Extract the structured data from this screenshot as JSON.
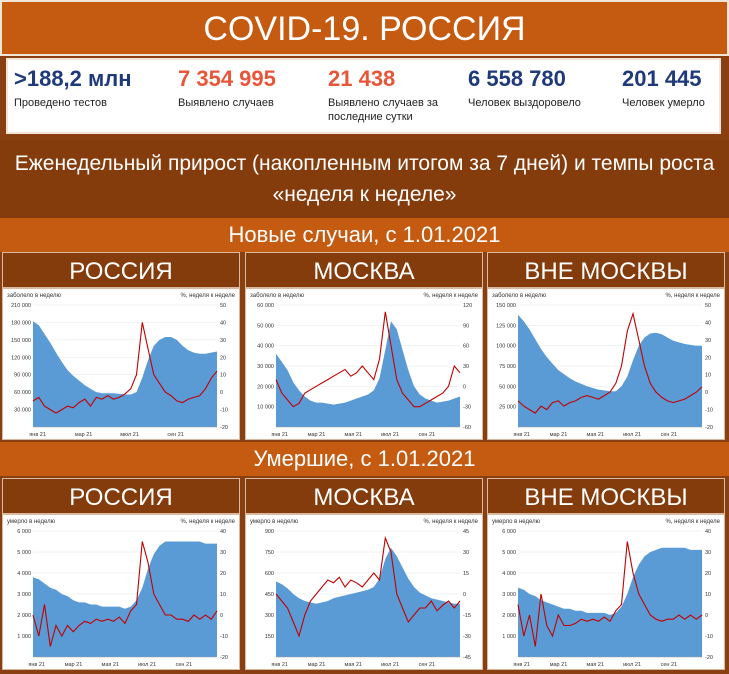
{
  "header": {
    "title": "COVID-19. РОССИЯ"
  },
  "stats": [
    {
      "value": ">188,2 млн",
      "label": "Проведено тестов",
      "color": "#1f3a7a"
    },
    {
      "value": "7 354 995",
      "label": "Выявлено случаев",
      "color": "#e8563a"
    },
    {
      "value": "21 438",
      "label": "Выявлено случаев за последние сутки",
      "color": "#e8563a"
    },
    {
      "value": "6 558 780",
      "label": "Человек выздоровело",
      "color": "#1f3a7a"
    },
    {
      "value": "201 445",
      "label": "Человек умерло",
      "color": "#1f3a7a"
    }
  ],
  "description": "Еженедельный прирост (накопленным итогом за 7 дней) и темпы роста «неделя к неделе»",
  "sections": {
    "cases": "Новые случаи, с 1.01.2021",
    "deaths": "Умершие, с 1.01.2021"
  },
  "colors": {
    "area": "#5b9bd5",
    "line": "#c00000"
  },
  "chart_data": [
    {
      "type": "area",
      "region": "РОССИЯ",
      "metric": "cases",
      "left_axis_label": "заболело в неделю",
      "right_axis_label": "%, неделя к неделе",
      "ylim": [
        0,
        210000
      ],
      "y2lim": [
        -20,
        50
      ],
      "yticks": [
        "210 000",
        "180 000",
        "150 000",
        "120 000",
        "90 000",
        "60 000",
        "30 000"
      ],
      "y2ticks": [
        "50",
        "40",
        "30",
        "20",
        "10",
        "0",
        "-10",
        "-20"
      ],
      "xticks": [
        "янв 21",
        "мар 21",
        "мюл 21",
        "сен 21"
      ],
      "series": [
        {
          "name": "",
          "axis": "left",
          "values": [
            182000,
            175000,
            160000,
            145000,
            128000,
            112000,
            98000,
            88000,
            80000,
            72000,
            66000,
            60000,
            58000,
            58000,
            58000,
            57000,
            56000,
            56000,
            60000,
            85000,
            115000,
            140000,
            150000,
            155000,
            155000,
            150000,
            140000,
            132000,
            128000,
            126000,
            126000,
            128000,
            130000
          ]
        },
        {
          "name": "",
          "axis": "right",
          "values": [
            -5,
            -3,
            -8,
            -10,
            -12,
            -10,
            -8,
            -9,
            -6,
            -4,
            -8,
            -3,
            -4,
            -2,
            -4,
            -3,
            -1,
            2,
            10,
            40,
            25,
            10,
            5,
            0,
            -2,
            -5,
            -6,
            -4,
            -3,
            -2,
            2,
            8,
            12
          ]
        }
      ]
    },
    {
      "type": "area",
      "region": "МОСКВА",
      "metric": "cases",
      "left_axis_label": "заболело в неделю",
      "right_axis_label": "%, неделя к неделе",
      "ylim": [
        0,
        60000
      ],
      "y2lim": [
        -60,
        120
      ],
      "yticks": [
        "60 000",
        "50 000",
        "40 000",
        "30 000",
        "20 000",
        "10 000"
      ],
      "y2ticks": [
        "120",
        "90",
        "60",
        "30",
        "0",
        "-30",
        "-60"
      ],
      "xticks": [
        "янв 21",
        "мар 21",
        "мая 21",
        "июл 21",
        "сен 21"
      ],
      "series": [
        {
          "name": "",
          "axis": "left",
          "values": [
            36000,
            32000,
            28000,
            22000,
            18000,
            15000,
            13000,
            12000,
            12000,
            11500,
            11000,
            11500,
            12000,
            13000,
            14000,
            15000,
            16000,
            18000,
            24000,
            38000,
            52000,
            48000,
            38000,
            28000,
            20000,
            16000,
            14000,
            13000,
            12000,
            12500,
            13000,
            14000,
            15000
          ]
        },
        {
          "name": "",
          "axis": "right",
          "values": [
            10,
            -10,
            -20,
            -30,
            -25,
            -10,
            -5,
            0,
            5,
            10,
            15,
            20,
            25,
            15,
            20,
            30,
            20,
            10,
            40,
            110,
            60,
            10,
            -10,
            -20,
            -30,
            -30,
            -25,
            -20,
            -15,
            -10,
            0,
            30,
            20
          ]
        }
      ]
    },
    {
      "type": "area",
      "region": "ВНЕ МОСКВЫ",
      "metric": "cases",
      "left_axis_label": "заболело в неделю",
      "right_axis_label": "%, неделя к неделе",
      "ylim": [
        0,
        150000
      ],
      "y2lim": [
        -20,
        50
      ],
      "yticks": [
        "150 000",
        "125 000",
        "100 000",
        "75 000",
        "50 000",
        "25 000"
      ],
      "y2ticks": [
        "50",
        "40",
        "30",
        "20",
        "10",
        "0",
        "-10",
        "-20"
      ],
      "xticks": [
        "янв 21",
        "мар 21",
        "мая 21",
        "июл 21",
        "сен 21"
      ],
      "series": [
        {
          "name": "",
          "axis": "left",
          "values": [
            138000,
            130000,
            120000,
            108000,
            96000,
            86000,
            78000,
            70000,
            65000,
            60000,
            56000,
            53000,
            50000,
            48000,
            46000,
            45000,
            44000,
            44000,
            50000,
            62000,
            82000,
            100000,
            110000,
            115000,
            116000,
            114000,
            110000,
            106000,
            104000,
            102000,
            101000,
            100000,
            100000
          ]
        },
        {
          "name": "",
          "axis": "right",
          "values": [
            -5,
            -8,
            -10,
            -12,
            -8,
            -10,
            -6,
            -5,
            -8,
            -6,
            -5,
            -3,
            -2,
            -3,
            -4,
            -2,
            0,
            5,
            15,
            35,
            45,
            30,
            15,
            5,
            0,
            -3,
            -5,
            -6,
            -5,
            -4,
            -2,
            0,
            3
          ]
        }
      ]
    },
    {
      "type": "area",
      "region": "РОССИЯ",
      "metric": "deaths",
      "left_axis_label": "умерло в неделю",
      "right_axis_label": "%, неделя к неделе",
      "ylim": [
        0,
        6000
      ],
      "y2lim": [
        -20,
        40
      ],
      "yticks": [
        "6 000",
        "5 000",
        "4 000",
        "3 000",
        "2 000",
        "1 000"
      ],
      "y2ticks": [
        "40",
        "30",
        "20",
        "10",
        "0",
        "-10",
        "-20"
      ],
      "xticks": [
        "янв 21",
        "мар 21",
        "мая 21",
        "июл 21",
        "сен 21"
      ],
      "series": [
        {
          "name": "",
          "axis": "left",
          "values": [
            3800,
            3700,
            3500,
            3300,
            3200,
            3000,
            2900,
            2700,
            2600,
            2600,
            2500,
            2500,
            2400,
            2400,
            2400,
            2400,
            2300,
            2400,
            2700,
            3300,
            4200,
            4900,
            5300,
            5500,
            5500,
            5500,
            5500,
            5500,
            5500,
            5500,
            5400,
            5400,
            5400
          ]
        },
        {
          "name": "",
          "axis": "right",
          "values": [
            0,
            -10,
            5,
            -15,
            -5,
            -10,
            -5,
            -8,
            -5,
            -3,
            -4,
            -2,
            -3,
            -2,
            -3,
            -1,
            -4,
            2,
            5,
            35,
            25,
            10,
            5,
            0,
            0,
            -2,
            -2,
            -3,
            0,
            -2,
            0,
            -2,
            2
          ]
        }
      ]
    },
    {
      "type": "area",
      "region": "МОСКВА",
      "metric": "deaths",
      "left_axis_label": "умерло в неделю",
      "right_axis_label": "%, неделя к неделе",
      "ylim": [
        0,
        900
      ],
      "y2lim": [
        -45,
        45
      ],
      "yticks": [
        "900",
        "750",
        "600",
        "450",
        "300",
        "150"
      ],
      "y2ticks": [
        "45",
        "30",
        "15",
        "0",
        "-15",
        "-30",
        "-45"
      ],
      "xticks": [
        "янв 21",
        "мар 21",
        "мая 21",
        "июл 21",
        "сен 21"
      ],
      "series": [
        {
          "name": "",
          "axis": "left",
          "values": [
            540,
            520,
            490,
            450,
            420,
            400,
            390,
            380,
            390,
            400,
            420,
            430,
            440,
            450,
            460,
            470,
            480,
            500,
            560,
            700,
            780,
            720,
            640,
            560,
            500,
            460,
            440,
            420,
            410,
            400,
            390,
            380,
            380
          ]
        },
        {
          "name": "",
          "axis": "right",
          "values": [
            0,
            -5,
            -10,
            -20,
            -30,
            -15,
            -5,
            0,
            5,
            10,
            8,
            12,
            5,
            10,
            8,
            5,
            10,
            15,
            10,
            40,
            30,
            0,
            -10,
            -20,
            -15,
            -10,
            -10,
            -5,
            -12,
            -8,
            -5,
            -10,
            -5
          ]
        }
      ]
    },
    {
      "type": "area",
      "region": "ВНЕ МОСКВЫ",
      "metric": "deaths",
      "left_axis_label": "умерло в неделю",
      "right_axis_label": "%, неделя к неделе",
      "ylim": [
        0,
        6000
      ],
      "y2lim": [
        -20,
        40
      ],
      "yticks": [
        "6 000",
        "5 000",
        "4 000",
        "3 000",
        "2 000",
        "1 000"
      ],
      "y2ticks": [
        "40",
        "30",
        "20",
        "10",
        "0",
        "-10",
        "-20"
      ],
      "xticks": [
        "янв 21",
        "мар 21",
        "мая 21",
        "июл 21",
        "сен 21"
      ],
      "series": [
        {
          "name": "",
          "axis": "left",
          "values": [
            3300,
            3200,
            3000,
            2900,
            2700,
            2600,
            2500,
            2400,
            2300,
            2300,
            2200,
            2200,
            2100,
            2100,
            2100,
            2100,
            2000,
            2100,
            2400,
            3000,
            3800,
            4400,
            4800,
            5000,
            5100,
            5200,
            5200,
            5200,
            5200,
            5200,
            5100,
            5100,
            5100
          ]
        },
        {
          "name": "",
          "axis": "right",
          "values": [
            5,
            -10,
            0,
            -15,
            10,
            -5,
            -10,
            0,
            -5,
            -5,
            -4,
            -2,
            -3,
            -2,
            -3,
            -1,
            -3,
            2,
            5,
            35,
            20,
            10,
            5,
            0,
            -2,
            -3,
            -2,
            -2,
            0,
            -2,
            0,
            -2,
            0
          ]
        }
      ]
    }
  ]
}
